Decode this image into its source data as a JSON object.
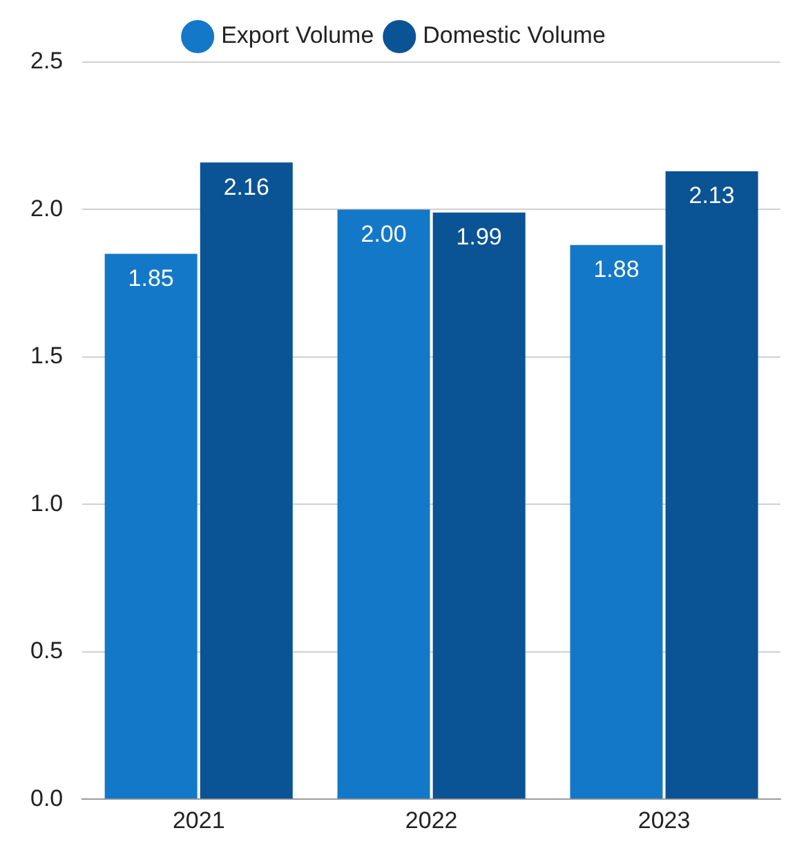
{
  "chart_data": {
    "type": "bar",
    "categories": [
      "2021",
      "2022",
      "2023"
    ],
    "series": [
      {
        "name": "Export Volume",
        "color": "#1478c8",
        "values": [
          1.85,
          2.0,
          1.88
        ],
        "value_labels": [
          "1.85",
          "2.00",
          "1.88"
        ]
      },
      {
        "name": "Domestic Volume",
        "color": "#0a5394",
        "values": [
          2.16,
          1.99,
          2.13
        ],
        "value_labels": [
          "2.16",
          "1.99",
          "2.13"
        ]
      }
    ],
    "ylim": [
      0,
      2.5
    ],
    "yticks": [
      {
        "value": 0,
        "label": "0.0"
      },
      {
        "value": 0.5,
        "label": "0.5"
      },
      {
        "value": 1,
        "label": "1.0"
      },
      {
        "value": 1.5,
        "label": "1.5"
      },
      {
        "value": 2,
        "label": "2.0"
      },
      {
        "value": 2.5,
        "label": "2.5"
      }
    ],
    "grid": "y",
    "legend": "top"
  }
}
